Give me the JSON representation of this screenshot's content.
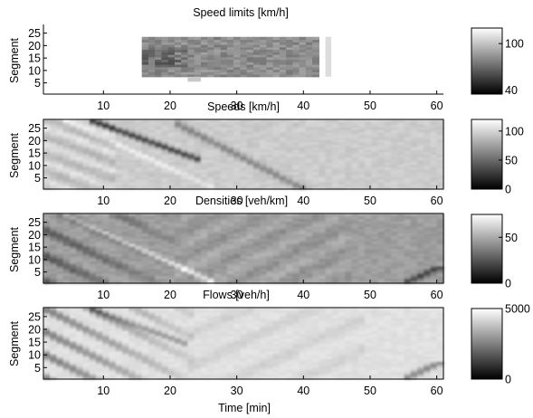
{
  "chart_data": [
    {
      "type": "heatmap",
      "title": "Speed limits [km/h]",
      "xlabel": "",
      "ylabel": "Segment",
      "xlim": [
        1,
        61
      ],
      "ylim": [
        1,
        28
      ],
      "xticks": [
        "10",
        "20",
        "30",
        "40",
        "50",
        "60"
      ],
      "yticks": [
        "5",
        "10",
        "15",
        "20",
        "25"
      ],
      "colorbar": {
        "min": 35,
        "max": 120,
        "ticks": [
          "40",
          "100"
        ]
      },
      "description_values": {
        "active_time_range_min": [
          16,
          42
        ],
        "active_segments": [
          8,
          23
        ],
        "typical_value": 80,
        "lowest_value": 40,
        "isolated_column_min": 44
      }
    },
    {
      "type": "heatmap",
      "title": "Speeds [km/h]",
      "xlabel": "",
      "ylabel": "Segment",
      "xlim": [
        1,
        61
      ],
      "ylim": [
        1,
        28
      ],
      "xticks": [
        "10",
        "20",
        "30",
        "40",
        "50",
        "60"
      ],
      "yticks": [
        "5",
        "10",
        "15",
        "20",
        "25"
      ],
      "colorbar": {
        "min": 0,
        "max": 120,
        "ticks": [
          "0",
          "50",
          "100"
        ]
      }
    },
    {
      "type": "heatmap",
      "title": "Densities [veh/km]",
      "xlabel": "",
      "ylabel": "Segment",
      "xlim": [
        1,
        61
      ],
      "ylim": [
        1,
        28
      ],
      "xticks": [
        "10",
        "20",
        "30",
        "40",
        "50",
        "60"
      ],
      "yticks": [
        "5",
        "10",
        "15",
        "20",
        "25"
      ],
      "colorbar": {
        "min": 0,
        "max": 75,
        "ticks": [
          "0",
          "50"
        ]
      }
    },
    {
      "type": "heatmap",
      "title": "Flows [veh/h]",
      "xlabel": "Time [min]",
      "ylabel": "Segment",
      "xlim": [
        1,
        61
      ],
      "ylim": [
        1,
        28
      ],
      "xticks": [
        "10",
        "20",
        "30",
        "40",
        "50",
        "60"
      ],
      "yticks": [
        "5",
        "10",
        "15",
        "20",
        "25"
      ],
      "colorbar": {
        "min": 0,
        "max": 5000,
        "ticks": [
          "0",
          "5000"
        ]
      }
    }
  ]
}
